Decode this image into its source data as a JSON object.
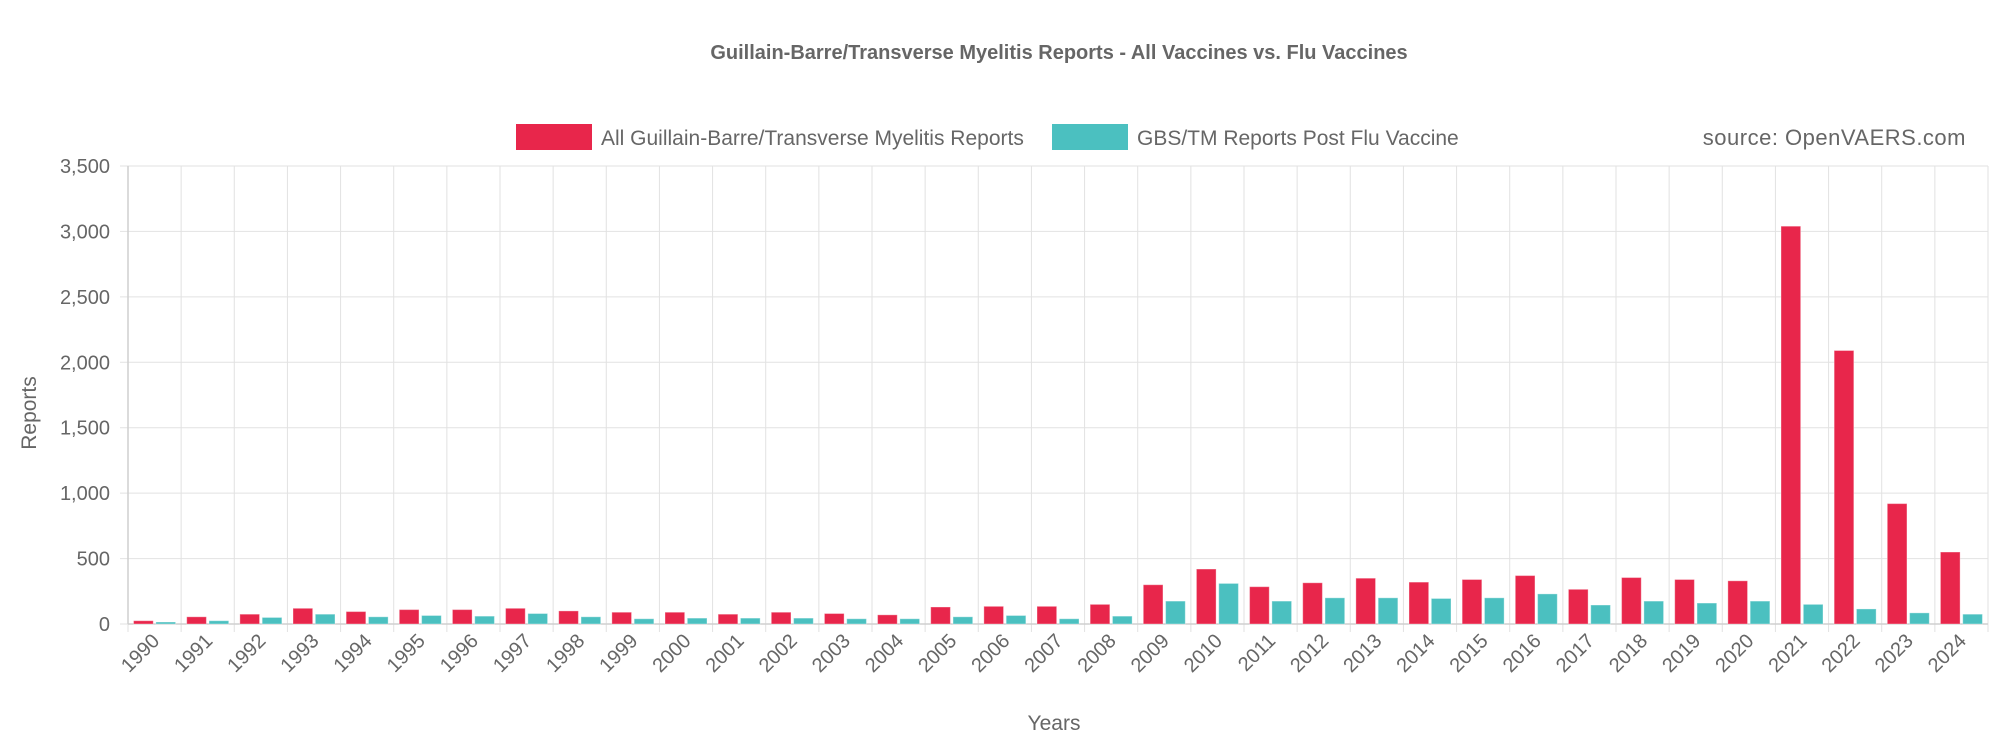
{
  "chart_data": {
    "type": "bar",
    "title": "Guillain-Barre/Transverse Myelitis Reports - All Vaccines vs. Flu Vaccines",
    "xlabel": "Years",
    "ylabel": "Reports",
    "ylim": [
      0,
      3500
    ],
    "yticks": [
      0,
      500,
      1000,
      1500,
      2000,
      2500,
      3000,
      3500
    ],
    "ytick_labels": [
      "0",
      "500",
      "1,000",
      "1,500",
      "2,000",
      "2,500",
      "3,000",
      "3,500"
    ],
    "grid": true,
    "legend_position": "top",
    "source_note": "source: OpenVAERS.com",
    "categories": [
      "1990",
      "1991",
      "1992",
      "1993",
      "1994",
      "1995",
      "1996",
      "1997",
      "1998",
      "1999",
      "2000",
      "2001",
      "2002",
      "2003",
      "2004",
      "2005",
      "2006",
      "2007",
      "2008",
      "2009",
      "2010",
      "2011",
      "2012",
      "2013",
      "2014",
      "2015",
      "2016",
      "2017",
      "2018",
      "2019",
      "2020",
      "2021",
      "2022",
      "2023",
      "2024"
    ],
    "series": [
      {
        "name": "All Guillain-Barre/Transverse Myelitis Reports",
        "color": "#e8264b",
        "values": [
          25,
          55,
          75,
          120,
          95,
          110,
          110,
          120,
          100,
          90,
          90,
          75,
          90,
          80,
          70,
          130,
          135,
          135,
          150,
          300,
          420,
          285,
          315,
          350,
          320,
          340,
          370,
          265,
          355,
          340,
          330,
          3040,
          2090,
          920,
          550
        ]
      },
      {
        "name": "GBS/TM Reports Post Flu Vaccine",
        "color": "#4bc0c0",
        "values": [
          15,
          25,
          50,
          75,
          55,
          65,
          60,
          80,
          55,
          40,
          45,
          45,
          45,
          40,
          40,
          55,
          65,
          40,
          60,
          175,
          310,
          175,
          200,
          200,
          195,
          200,
          230,
          145,
          175,
          160,
          175,
          150,
          115,
          85,
          75
        ]
      }
    ]
  }
}
